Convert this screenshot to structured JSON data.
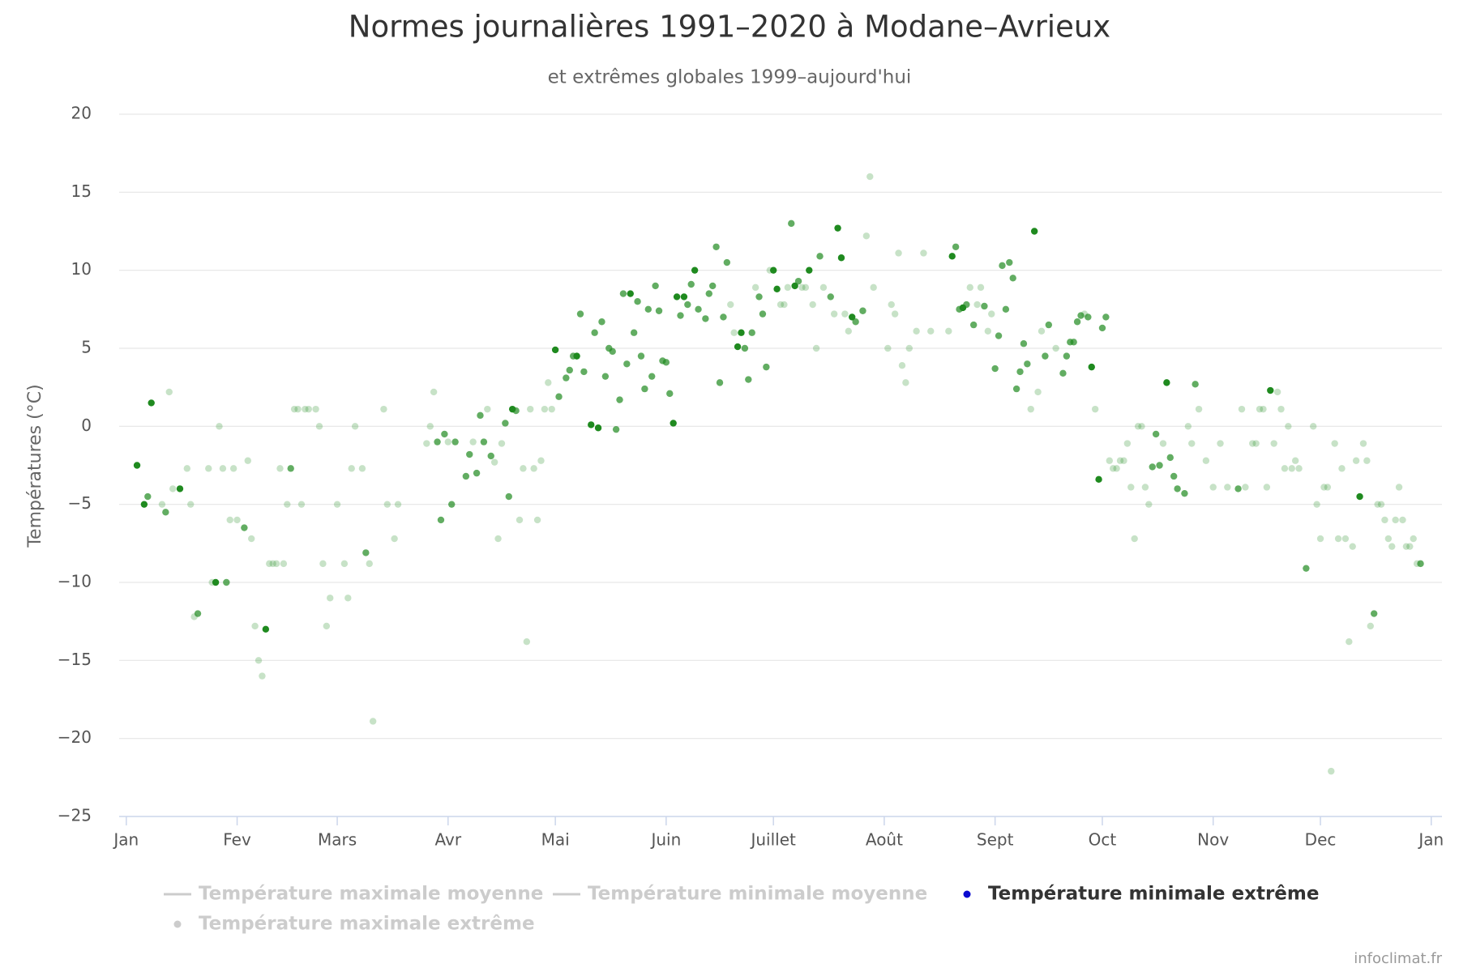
{
  "chart_data": {
    "type": "scatter",
    "title": "Normes journalières 1991–2020 à Modane–Avrieux",
    "subtitle": "et extrêmes globales 1999–aujourd'hui",
    "y_label": "Températures (°C)",
    "credits": "infoclimat.fr",
    "xlim": [
      -2,
      368
    ],
    "ylim": [
      -25,
      20
    ],
    "xticks": [
      {
        "value": 0,
        "label": "Jan"
      },
      {
        "value": 31,
        "label": "Fev"
      },
      {
        "value": 59,
        "label": "Mars"
      },
      {
        "value": 90,
        "label": "Avr"
      },
      {
        "value": 120,
        "label": "Mai"
      },
      {
        "value": 151,
        "label": "Juin"
      },
      {
        "value": 181,
        "label": "Juillet"
      },
      {
        "value": 212,
        "label": "Août"
      },
      {
        "value": 243,
        "label": "Sept"
      },
      {
        "value": 273,
        "label": "Oct"
      },
      {
        "value": 304,
        "label": "Nov"
      },
      {
        "value": 334,
        "label": "Dec"
      },
      {
        "value": 365,
        "label": "Jan"
      }
    ],
    "yticks": [
      {
        "value": -25,
        "label": "−25"
      },
      {
        "value": -20,
        "label": "−20"
      },
      {
        "value": -15,
        "label": "−15"
      },
      {
        "value": -10,
        "label": "−10"
      },
      {
        "value": -5,
        "label": "−5"
      },
      0,
      5,
      10,
      15,
      20
    ],
    "grid": true,
    "series": [
      {
        "name": "Température maximale moyenne",
        "symbol": "line",
        "visible": false
      },
      {
        "name": "Température minimale moyenne",
        "symbol": "line",
        "visible": false
      },
      {
        "name": "Température minimale extrême",
        "symbol": "dot",
        "visible": true,
        "color": "#0a0ad0",
        "point_color": "#1f8a1f",
        "x": [
          3,
          5,
          6,
          7,
          10,
          11,
          12,
          13,
          15,
          17,
          18,
          19,
          20,
          23,
          24,
          25,
          26,
          27,
          28,
          29,
          30,
          31,
          33,
          34,
          35,
          36,
          37,
          38,
          39,
          40,
          41,
          42,
          43,
          44,
          45,
          46,
          47,
          48,
          49,
          50,
          51,
          53,
          54,
          55,
          56,
          57,
          59,
          61,
          62,
          63,
          64,
          66,
          67,
          68,
          69,
          72,
          73,
          75,
          76,
          84,
          85,
          86,
          87,
          88,
          89,
          90,
          91,
          92,
          95,
          96,
          97,
          98,
          99,
          100,
          101,
          102,
          103,
          104,
          105,
          106,
          107,
          108,
          109,
          110,
          111,
          112,
          113,
          114,
          115,
          116,
          117,
          118,
          119,
          120,
          121,
          123,
          124,
          125,
          126,
          127,
          128,
          130,
          131,
          132,
          133,
          134,
          135,
          136,
          137,
          138,
          139,
          140,
          141,
          142,
          143,
          144,
          145,
          146,
          147,
          148,
          149,
          150,
          151,
          152,
          153,
          154,
          155,
          156,
          157,
          158,
          159,
          160,
          162,
          163,
          164,
          165,
          166,
          167,
          168,
          169,
          170,
          171,
          172,
          173,
          174,
          175,
          176,
          177,
          178,
          179,
          180,
          181,
          182,
          183,
          184,
          185,
          186,
          187,
          188,
          189,
          190,
          191,
          192,
          193,
          194,
          195,
          197,
          198,
          199,
          200,
          201,
          202,
          203,
          204,
          206,
          207,
          208,
          209,
          213,
          214,
          215,
          216,
          217,
          218,
          219,
          221,
          223,
          225,
          230,
          231,
          232,
          233,
          234,
          235,
          236,
          237,
          238,
          239,
          240,
          241,
          242,
          243,
          244,
          245,
          246,
          247,
          248,
          249,
          250,
          251,
          252,
          253,
          254,
          255,
          256,
          257,
          258,
          260,
          262,
          263,
          264,
          265,
          266,
          267,
          268,
          269,
          270,
          271,
          272,
          273,
          274,
          275,
          276,
          277,
          278,
          279,
          280,
          281,
          282,
          283,
          284,
          285,
          286,
          287,
          288,
          289,
          290,
          291,
          292,
          293,
          294,
          296,
          297,
          298,
          299,
          300,
          302,
          304,
          306,
          308,
          311,
          312,
          313,
          315,
          316,
          317,
          318,
          319,
          320,
          321,
          322,
          323,
          324,
          325,
          326,
          327,
          328,
          330,
          332,
          333,
          334,
          335,
          336,
          337,
          338,
          339,
          340,
          341,
          342,
          343,
          344,
          345,
          346,
          347,
          348,
          349,
          350,
          351,
          352,
          353,
          354,
          355,
          356,
          357,
          358,
          359,
          360,
          361,
          362
        ],
        "values": [
          -2.5,
          -5,
          -4.5,
          1.5,
          -5,
          -5.5,
          2.2,
          -4,
          -4,
          -2.7,
          -5,
          -12.2,
          -12,
          -2.7,
          -10,
          -10,
          0,
          -2.7,
          -10,
          -6,
          -2.7,
          -6,
          -6.5,
          -2.2,
          -7.2,
          -12.8,
          -15,
          -16,
          -13,
          -8.8,
          -8.8,
          -8.8,
          -2.7,
          -8.8,
          -5,
          -2.7,
          1.1,
          1.1,
          -5,
          1.1,
          1.1,
          1.1,
          0,
          -8.8,
          -12.8,
          -11,
          -5,
          -8.8,
          -11,
          -2.7,
          0,
          -2.7,
          -8.1,
          -8.8,
          -18.9,
          1.1,
          -5,
          -7.2,
          -5,
          -1.1,
          0,
          2.2,
          -1,
          -6,
          -0.5,
          -1,
          -5,
          -1,
          -3.2,
          -1.8,
          -1,
          -3,
          0.7,
          -1,
          1.1,
          -1.9,
          -2.3,
          -7.2,
          -1.1,
          0.2,
          -4.5,
          1.1,
          1,
          -6,
          -2.7,
          -13.8,
          1.1,
          -2.7,
          -6,
          -2.2,
          1.1,
          2.8,
          1.1,
          4.9,
          1.9,
          3.1,
          3.6,
          4.5,
          4.5,
          7.2,
          3.5,
          0.1,
          6,
          -0.1,
          6.7,
          3.2,
          5,
          4.8,
          -0.2,
          1.7,
          8.5,
          4,
          8.5,
          6,
          8,
          4.5,
          2.4,
          7.5,
          3.2,
          9,
          7.4,
          4.2,
          4.1,
          2.1,
          0.2,
          8.3,
          7.1,
          8.3,
          7.8,
          9.1,
          10,
          7.5,
          6.9,
          8.5,
          9,
          11.5,
          2.8,
          7,
          10.5,
          7.8,
          6,
          5.1,
          6,
          5,
          3,
          6,
          8.9,
          8.3,
          7.2,
          3.8,
          10,
          10,
          8.8,
          7.8,
          7.8,
          8.9,
          13,
          9,
          9.3,
          8.9,
          8.9,
          10,
          7.8,
          5,
          10.9,
          8.9,
          8.3,
          7.2,
          12.7,
          10.8,
          7.2,
          6.1,
          7,
          6.7,
          7.4,
          12.2,
          16,
          8.9,
          5,
          7.8,
          7.2,
          11.1,
          3.9,
          2.8,
          5,
          6.1,
          11.1,
          6.1,
          6.1,
          10.9,
          11.5,
          7.5,
          7.6,
          7.8,
          8.9,
          6.5,
          7.8,
          8.9,
          7.7,
          6.1,
          7.2,
          3.7,
          5.8,
          10.3,
          7.5,
          10.5,
          9.5,
          2.4,
          3.5,
          5.3,
          4,
          1.1,
          12.5,
          2.2,
          6.1,
          4.5,
          6.5,
          5,
          3.4,
          4.5,
          5.4,
          5.4,
          6.7,
          7.1,
          7.2,
          7,
          3.8,
          1.1,
          -3.4,
          6.3,
          7,
          -2.2,
          -2.7,
          -2.7,
          -2.2,
          -2.2,
          -1.1,
          -3.9,
          -7.2,
          0,
          0,
          -3.9,
          -5,
          -2.6,
          -0.5,
          -2.5,
          -1.1,
          2.8,
          -2,
          -3.2,
          -4,
          -4.3,
          0,
          -1.1,
          2.7,
          1.1,
          -2.2,
          -3.9,
          -1.1,
          -3.9,
          -4,
          1.1,
          -3.9,
          -1.1,
          -1.1,
          1.1,
          1.1,
          -3.9,
          2.3,
          -1.1,
          2.2,
          1.1,
          -2.7,
          0,
          -2.7,
          -2.2,
          -2.7,
          -9.1,
          0,
          -5,
          -7.2,
          -3.9,
          -3.9,
          -22.1,
          -1.1,
          -7.2,
          -2.7,
          -7.2,
          -13.8,
          -7.7,
          -2.2,
          -4.5,
          -1.1,
          -2.2,
          -12.8,
          -12,
          -5,
          -5,
          -6,
          -7.2,
          -7.7,
          -6,
          -3.9,
          -6,
          -7.7,
          -7.7,
          -7.2,
          -8.8,
          -8.8
        ],
        "opacities": [
          1,
          1,
          0.7,
          1,
          0.25,
          0.7,
          0.25,
          0.25,
          1,
          0.25,
          0.25,
          0.25,
          0.7,
          0.25,
          0.25,
          1,
          0.25,
          0.25,
          0.7,
          0.25,
          0.25,
          0.25,
          0.7,
          0.25,
          0.25,
          0.25,
          0.25,
          0.25,
          1,
          0.25,
          0.25,
          0.25,
          0.25,
          0.25,
          0.25,
          0.7,
          0.25,
          0.25,
          0.25,
          0.25,
          0.25,
          0.25,
          0.25,
          0.25,
          0.25,
          0.25,
          0.25,
          0.25,
          0.25,
          0.25,
          0.25,
          0.25,
          0.7,
          0.25,
          0.25,
          0.25,
          0.25,
          0.25,
          0.25,
          0.25,
          0.25,
          0.25,
          0.7,
          0.7,
          0.7,
          0.25,
          0.7,
          0.7,
          0.7,
          0.7,
          0.25,
          0.7,
          0.7,
          0.7,
          0.25,
          0.7,
          0.25,
          0.25,
          0.25,
          0.7,
          0.7,
          1,
          0.7,
          0.25,
          0.25,
          0.25,
          0.25,
          0.25,
          0.25,
          0.25,
          0.25,
          0.25,
          0.25,
          1,
          0.7,
          0.7,
          0.7,
          0.7,
          1,
          0.7,
          0.7,
          1,
          0.7,
          1,
          0.7,
          0.7,
          0.7,
          0.7,
          0.7,
          0.7,
          0.7,
          0.7,
          1,
          0.7,
          0.7,
          0.7,
          0.7,
          0.7,
          0.7,
          0.7,
          0.7,
          0.7,
          0.7,
          0.7,
          1,
          1,
          0.7,
          1,
          0.7,
          0.7,
          1,
          0.7,
          0.7,
          0.7,
          0.7,
          0.7,
          0.7,
          0.7,
          0.7,
          0.25,
          0.25,
          1,
          1,
          0.7,
          0.7,
          0.7,
          0.25,
          0.7,
          0.7,
          0.7,
          0.25,
          1,
          1,
          0.25,
          0.25,
          0.25,
          0.7,
          1,
          0.7,
          0.25,
          0.25,
          1,
          0.25,
          0.25,
          0.7,
          0.25,
          0.7,
          0.25,
          1,
          1,
          0.25,
          0.25,
          1,
          0.7,
          0.7,
          0.25,
          0.25,
          0.25,
          0.25,
          0.25,
          0.25,
          0.25,
          0.25,
          0.25,
          0.25,
          0.25,
          0.25,
          0.25,
          0.25,
          1,
          0.7,
          0.7,
          1,
          0.7,
          0.25,
          0.7,
          0.25,
          0.25,
          0.7,
          0.25,
          0.25,
          0.7,
          0.7,
          0.7,
          0.7,
          0.7,
          0.7,
          0.7,
          0.7,
          0.7,
          0.7,
          0.25,
          1,
          0.25,
          0.25,
          0.7,
          0.7,
          0.25,
          0.7,
          0.7,
          0.7,
          0.7,
          0.7,
          0.7,
          0.25,
          0.7,
          1,
          0.25,
          1,
          0.7,
          0.7,
          0.25,
          0.25,
          0.25,
          0.25,
          0.25,
          0.25,
          0.25,
          0.25,
          0.25,
          0.25,
          0.25,
          0.25,
          0.7,
          0.7,
          0.7,
          0.25,
          1,
          0.7,
          0.7,
          0.7,
          0.7,
          0.25,
          0.25,
          0.7,
          0.25,
          0.25,
          0.25,
          0.25,
          0.25,
          0.7,
          0.25,
          0.25,
          0.25,
          0.25,
          0.25,
          0.25,
          0.25,
          1,
          0.25,
          0.25,
          0.25,
          0.25,
          0.25,
          0.25,
          0.25,
          0.25,
          0.7,
          0.25,
          0.25,
          0.25,
          0.25,
          0.25,
          0.25,
          0.25,
          0.25,
          0.25,
          0.25,
          0.25,
          0.25,
          0.25,
          1,
          0.25,
          0.25,
          0.25,
          0.7,
          0.25,
          0.25,
          0.25,
          0.25,
          0.25,
          0.25,
          0.25,
          0.25,
          0.25,
          0.25,
          0.25,
          0.25,
          0.7
        ]
      },
      {
        "name": "Température maximale extrême",
        "symbol": "dot",
        "visible": false
      }
    ]
  }
}
